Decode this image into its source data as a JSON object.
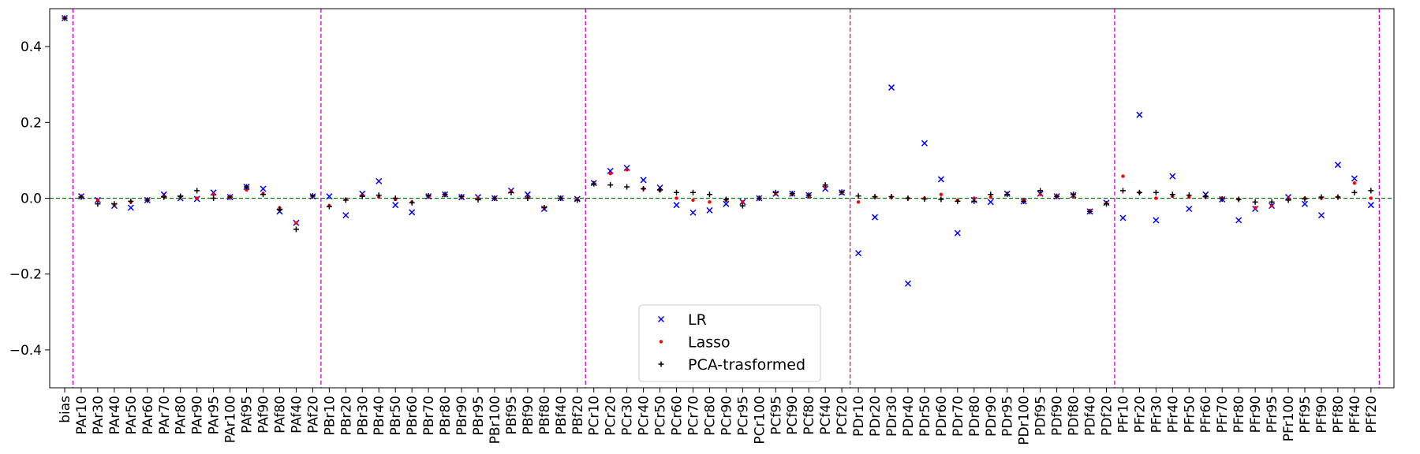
{
  "chart_data": {
    "type": "scatter",
    "title": "",
    "xlabel": "",
    "ylabel": "",
    "ylim": [
      -0.5,
      0.5
    ],
    "yticks": [
      -0.4,
      -0.2,
      0.0,
      0.2,
      0.4
    ],
    "ytick_labels": [
      "−0.4",
      "−0.2",
      "0.0",
      "0.2",
      "0.4"
    ],
    "grid": false,
    "legend_position": "bottom-center",
    "zero_line_color": "#008000",
    "group_line_color": "#cc00cc",
    "group_separators_after": [
      "bias",
      "PAf20",
      "PBf20",
      "PCf20",
      "PDf20",
      "PFf20"
    ],
    "categories": [
      "bias",
      "PAr10",
      "PAr30",
      "PAr40",
      "PAr50",
      "PAr60",
      "PAr70",
      "PAr80",
      "PAr90",
      "PAr95",
      "PAr100",
      "PAf95",
      "PAf90",
      "PAf80",
      "PAf40",
      "PAf20",
      "PBr10",
      "PBr20",
      "PBr30",
      "PBr40",
      "PBr50",
      "PBr60",
      "PBr70",
      "PBr80",
      "PBr90",
      "PBr95",
      "PBr100",
      "PBf95",
      "PBf90",
      "PBf80",
      "PBf40",
      "PBf20",
      "PCr10",
      "PCr20",
      "PCr30",
      "PCr40",
      "PCr50",
      "PCr60",
      "PCr70",
      "PCr80",
      "PCr90",
      "PCr95",
      "PCr100",
      "PCf95",
      "PCf90",
      "PCf80",
      "PCf40",
      "PCf20",
      "PDr10",
      "PDr20",
      "PDr30",
      "PDr40",
      "PDr50",
      "PDr60",
      "PDr70",
      "PDr80",
      "PDr90",
      "PDr95",
      "PDr100",
      "PDf95",
      "PDf90",
      "PDf80",
      "PDf40",
      "PDf20",
      "PFr10",
      "PFr20",
      "PFr30",
      "PFr40",
      "PFr50",
      "PFr60",
      "PFr70",
      "PFr80",
      "PFr90",
      "PFr95",
      "PFr100",
      "PFf95",
      "PFf90",
      "PFf80",
      "PFf40",
      "PFf20"
    ],
    "series": [
      {
        "name": "LR",
        "marker": "x",
        "color": "#0000ff",
        "values": [
          0.475,
          0.005,
          -0.005,
          -0.02,
          -0.025,
          -0.005,
          0.01,
          0.0,
          -0.002,
          0.015,
          0.003,
          0.03,
          0.025,
          -0.035,
          -0.065,
          0.005,
          0.005,
          -0.045,
          0.012,
          0.045,
          -0.018,
          -0.037,
          0.005,
          0.01,
          0.003,
          0.003,
          0.0,
          0.02,
          0.01,
          -0.028,
          0.0,
          -0.002,
          0.04,
          0.072,
          0.08,
          0.048,
          0.028,
          -0.018,
          -0.038,
          -0.032,
          -0.015,
          -0.01,
          0.0,
          0.012,
          0.012,
          0.008,
          0.025,
          0.015,
          -0.145,
          -0.05,
          0.292,
          -0.225,
          0.145,
          0.05,
          -0.092,
          -0.005,
          -0.01,
          0.012,
          -0.008,
          0.012,
          0.005,
          0.008,
          -0.035,
          -0.012,
          -0.052,
          0.22,
          -0.058,
          0.058,
          -0.028,
          0.01,
          -0.003,
          -0.058,
          -0.028,
          -0.02,
          0.003,
          -0.015,
          -0.045,
          0.088,
          0.052,
          -0.018
        ]
      },
      {
        "name": "Lasso",
        "marker": "dot",
        "color": "#ff0000",
        "values": [
          0.475,
          0.004,
          -0.005,
          -0.018,
          -0.01,
          -0.004,
          0.005,
          0.004,
          0.0,
          0.01,
          0.003,
          0.022,
          0.012,
          -0.025,
          -0.065,
          0.004,
          -0.02,
          -0.003,
          0.008,
          0.003,
          -0.003,
          -0.01,
          0.004,
          0.008,
          0.003,
          0.0,
          0.0,
          0.018,
          0.003,
          -0.025,
          0.0,
          -0.003,
          0.038,
          0.065,
          0.075,
          0.025,
          0.02,
          0.0,
          -0.005,
          -0.01,
          -0.005,
          -0.01,
          0.0,
          0.012,
          0.01,
          0.005,
          0.03,
          0.015,
          -0.01,
          0.003,
          0.003,
          0.0,
          0.0,
          0.01,
          -0.005,
          0.0,
          0.003,
          0.01,
          -0.005,
          0.01,
          0.005,
          0.005,
          -0.033,
          -0.012,
          0.058,
          0.015,
          0.0,
          0.005,
          0.003,
          0.003,
          0.0,
          -0.003,
          -0.025,
          -0.02,
          0.0,
          0.0,
          0.0,
          0.003,
          0.04,
          0.0
        ]
      },
      {
        "name": "PCA-trasformed",
        "marker": "plus",
        "color": "#000000",
        "values": [
          0.475,
          0.003,
          -0.015,
          -0.015,
          -0.008,
          -0.005,
          0.003,
          0.005,
          0.02,
          0.0,
          0.003,
          0.03,
          0.01,
          -0.03,
          -0.082,
          0.006,
          -0.022,
          -0.005,
          0.005,
          0.008,
          0.0,
          -0.012,
          0.006,
          0.01,
          0.004,
          -0.004,
          0.0,
          0.015,
          0.0,
          -0.025,
          0.0,
          -0.005,
          0.038,
          0.035,
          0.03,
          0.025,
          0.022,
          0.015,
          0.015,
          0.01,
          -0.003,
          -0.02,
          0.0,
          0.015,
          0.012,
          0.008,
          0.035,
          0.016,
          0.006,
          0.004,
          0.004,
          0.0,
          -0.002,
          -0.003,
          -0.008,
          -0.008,
          0.01,
          0.01,
          -0.008,
          0.02,
          0.005,
          0.01,
          -0.035,
          -0.015,
          0.02,
          0.015,
          0.015,
          0.01,
          0.008,
          0.005,
          -0.002,
          -0.003,
          -0.01,
          -0.01,
          -0.005,
          -0.002,
          0.003,
          0.003,
          0.015,
          0.02
        ]
      }
    ]
  }
}
